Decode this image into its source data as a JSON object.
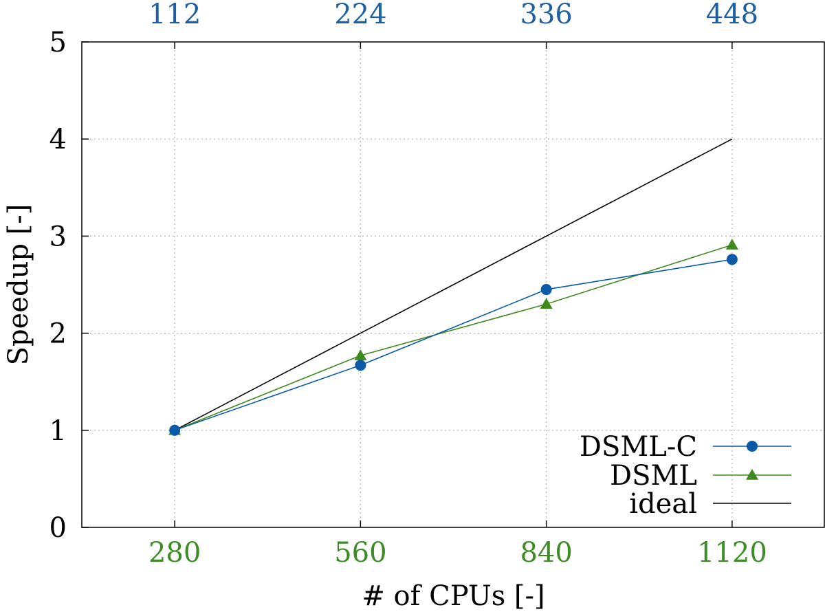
{
  "chart_data": {
    "type": "line",
    "title": "",
    "xlabel": "# of CPUs [-]",
    "ylabel": "Speedup [-]",
    "x": [
      280,
      560,
      840,
      1120
    ],
    "xlim": [
      140,
      1260
    ],
    "ylim": [
      0,
      5
    ],
    "yticks": [
      "0",
      "1",
      "2",
      "3",
      "4",
      "5"
    ],
    "xticks_bottom": [
      "280",
      "560",
      "840",
      "1120"
    ],
    "xticks_top": [
      "112",
      "224",
      "336",
      "448"
    ],
    "grid": true,
    "legend_position": "bottom-right",
    "series": [
      {
        "name": "DSML-C",
        "values": [
          1.0,
          1.67,
          2.45,
          2.76
        ],
        "color": "#0a5aa8",
        "marker": "circle"
      },
      {
        "name": "DSML",
        "values": [
          1.0,
          1.77,
          2.3,
          2.91
        ],
        "color": "#3f8a1f",
        "marker": "triangle"
      },
      {
        "name": "ideal",
        "values": [
          1.0,
          2.0,
          3.0,
          4.0
        ],
        "color": "#000000",
        "marker": "none"
      }
    ],
    "colors": {
      "top_tick_color": "#1c5fa3",
      "bottom_tick_color": "#3d8b26",
      "grid_color": "#b0b0b0"
    }
  }
}
